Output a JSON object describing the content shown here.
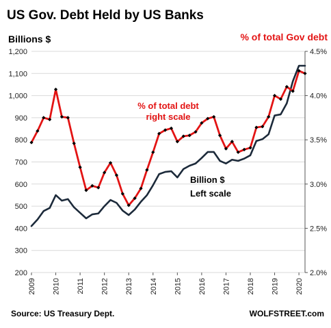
{
  "chart_data": {
    "type": "line",
    "title": "US Gov. Debt Held by US Banks",
    "ylabel_left": "Billions  $",
    "ylabel_right": "% of total Gov debt",
    "y_left_lim": [
      200,
      1200
    ],
    "y_left_ticks": [
      "200",
      "300",
      "400",
      "500",
      "600",
      "700",
      "800",
      "900",
      "1,000",
      "1,100",
      "1,200"
    ],
    "y_right_lim": [
      2.0,
      4.5
    ],
    "y_right_ticks": [
      "2.0%",
      "2.5%",
      "3.0%",
      "3.5%",
      "4.0%",
      "4.5%"
    ],
    "x_lim": [
      2009,
      2020.25
    ],
    "x_ticks": [
      "2009",
      "2010",
      "2011",
      "2012",
      "2013",
      "2014",
      "2015",
      "2016",
      "2017",
      "2018",
      "2019",
      "2020"
    ],
    "grid": "horizontal",
    "x": [
      2009.0,
      2009.25,
      2009.5,
      2009.75,
      2010.0,
      2010.25,
      2010.5,
      2010.75,
      2011.0,
      2011.25,
      2011.5,
      2011.75,
      2012.0,
      2012.25,
      2012.5,
      2012.75,
      2013.0,
      2013.25,
      2013.5,
      2013.75,
      2014.0,
      2014.25,
      2014.5,
      2014.75,
      2015.0,
      2015.25,
      2015.5,
      2015.75,
      2016.0,
      2016.25,
      2016.5,
      2016.75,
      2017.0,
      2017.25,
      2017.5,
      2017.75,
      2018.0,
      2018.25,
      2018.5,
      2018.75,
      2019.0,
      2019.25,
      2019.5,
      2019.75,
      2020.0,
      2020.25
    ],
    "series": [
      {
        "name": "Billion $",
        "axis": "left",
        "color": "#1c2a3a",
        "values": [
          410,
          440,
          478,
          492,
          550,
          525,
          532,
          495,
          470,
          445,
          463,
          467,
          500,
          528,
          515,
          480,
          460,
          485,
          520,
          550,
          595,
          645,
          655,
          658,
          630,
          668,
          683,
          693,
          718,
          745,
          745,
          705,
          693,
          710,
          705,
          715,
          730,
          795,
          803,
          825,
          910,
          915,
          965,
          1065,
          1135,
          1135
        ]
      },
      {
        "name": "% of total debt",
        "axis": "right",
        "color": "#e31414",
        "values": [
          3.47,
          3.6,
          3.75,
          3.73,
          4.07,
          3.76,
          3.75,
          3.46,
          3.19,
          2.93,
          2.98,
          2.96,
          3.13,
          3.24,
          3.1,
          2.89,
          2.76,
          2.84,
          2.95,
          3.16,
          3.36,
          3.57,
          3.61,
          3.63,
          3.48,
          3.54,
          3.55,
          3.59,
          3.69,
          3.74,
          3.76,
          3.55,
          3.4,
          3.48,
          3.36,
          3.39,
          3.41,
          3.64,
          3.65,
          3.76,
          4.0,
          3.96,
          4.1,
          4.05,
          4.28,
          4.25
        ]
      }
    ],
    "annotations": [
      {
        "text": "% of total debt",
        "color": "#e31414"
      },
      {
        "text": "right scale",
        "color": "#e31414"
      },
      {
        "text": "Billion $",
        "color": "#000000"
      },
      {
        "text": "Left scale",
        "color": "#000000"
      }
    ]
  },
  "footer": {
    "source": "Source: US Treasury Dept.",
    "brand": "WOLFSTREET.com"
  }
}
